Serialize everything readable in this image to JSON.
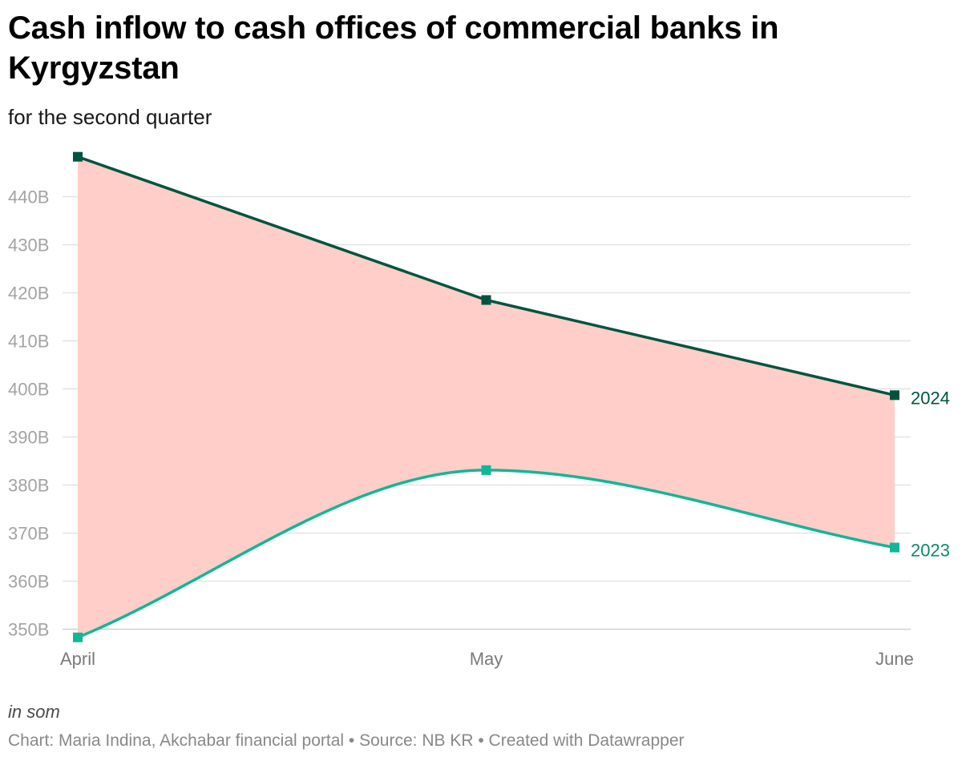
{
  "title": "Cash inflow to cash offices of commercial banks in Kyrgyzstan",
  "subtitle": "for the second quarter",
  "notes": "in som",
  "footer": {
    "chart_by": "Chart: Maria Indina, Akchabar financial portal",
    "separator": "•",
    "source": "Source: NB KR",
    "created_with": "Created with Datawrapper"
  },
  "colors": {
    "series_2024": "#00543f",
    "series_2023": "#13b597",
    "label_2023": "#0c8a6e",
    "fill_between": "#ffcec8",
    "grid": "#e3e3e3",
    "tick_text": "#a3a3a3",
    "axis_label_text": "#7a7a7a"
  },
  "chart_data": {
    "type": "line",
    "categories": [
      "April",
      "May",
      "June"
    ],
    "series": [
      {
        "name": "2024",
        "values": [
          448.3,
          418.5,
          398.7
        ]
      },
      {
        "name": "2023",
        "values": [
          348.3,
          383.1,
          367.0
        ]
      }
    ],
    "fill_between_series": true,
    "ylim": [
      350,
      450
    ],
    "yticks": [
      350,
      360,
      370,
      380,
      390,
      400,
      410,
      420,
      430,
      440
    ],
    "ytick_labels": [
      "350B",
      "360B",
      "370B",
      "380B",
      "390B",
      "400B",
      "410B",
      "420B",
      "430B",
      "440B"
    ],
    "grid": true,
    "legend": "inline labels at line ends",
    "xlabel": "",
    "ylabel": ""
  }
}
